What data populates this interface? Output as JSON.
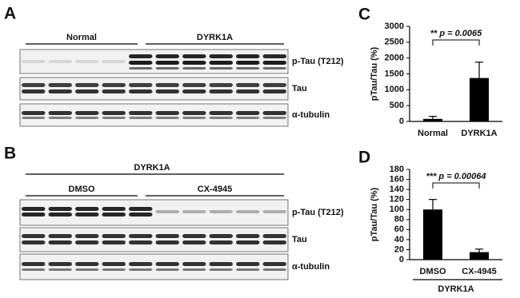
{
  "blots": {
    "A": {
      "label": "A",
      "groups": [
        "Normal",
        "DYRK1A"
      ],
      "rows": [
        "p-Tau (T212)",
        "Tau",
        "α-tubulin"
      ]
    },
    "B": {
      "label": "B",
      "header": "DYRK1A",
      "groups": [
        "DMSO",
        "CX-4945"
      ],
      "rows": [
        "p-Tau (T212)",
        "Tau",
        "α-tubulin"
      ]
    }
  },
  "chart_data": [
    {
      "type": "bar",
      "label": "C",
      "y_label": "pTau/Tau (%)",
      "annotation": "** p = 0.0065",
      "categories": [
        "Normal",
        "DYRK1A"
      ],
      "values": [
        80,
        1370
      ],
      "errors": [
        80,
        500
      ],
      "color": "#000000",
      "ylim": [
        0,
        3000
      ],
      "yticks": [
        0,
        500,
        1000,
        1500,
        2000,
        2500,
        3000
      ]
    },
    {
      "type": "bar",
      "label": "D",
      "y_label": "pTau/Tau (%)",
      "annotation": "*** p = 0.00064",
      "group_label": "DYRK1A",
      "categories": [
        "DMSO",
        "CX-4945"
      ],
      "values": [
        100,
        15
      ],
      "errors": [
        20,
        6
      ],
      "color": "#000000",
      "ylim": [
        0,
        180
      ],
      "yticks": [
        0,
        20,
        40,
        60,
        80,
        100,
        120,
        140,
        160,
        180
      ]
    }
  ]
}
